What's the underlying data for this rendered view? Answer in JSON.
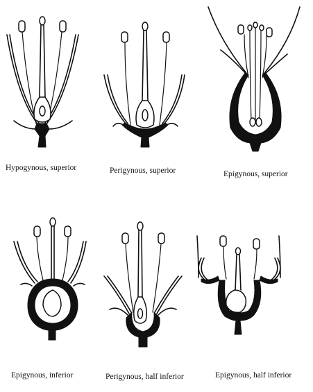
{
  "figures": [
    {
      "label": "Hypogynous, superior"
    },
    {
      "label": "Perigynous, superior"
    },
    {
      "label": "Epigynous, superior"
    },
    {
      "label": "Epigynous, inferior"
    },
    {
      "label": "Perigynous, half inferior"
    },
    {
      "label": "Epigynous, half inferior"
    }
  ]
}
